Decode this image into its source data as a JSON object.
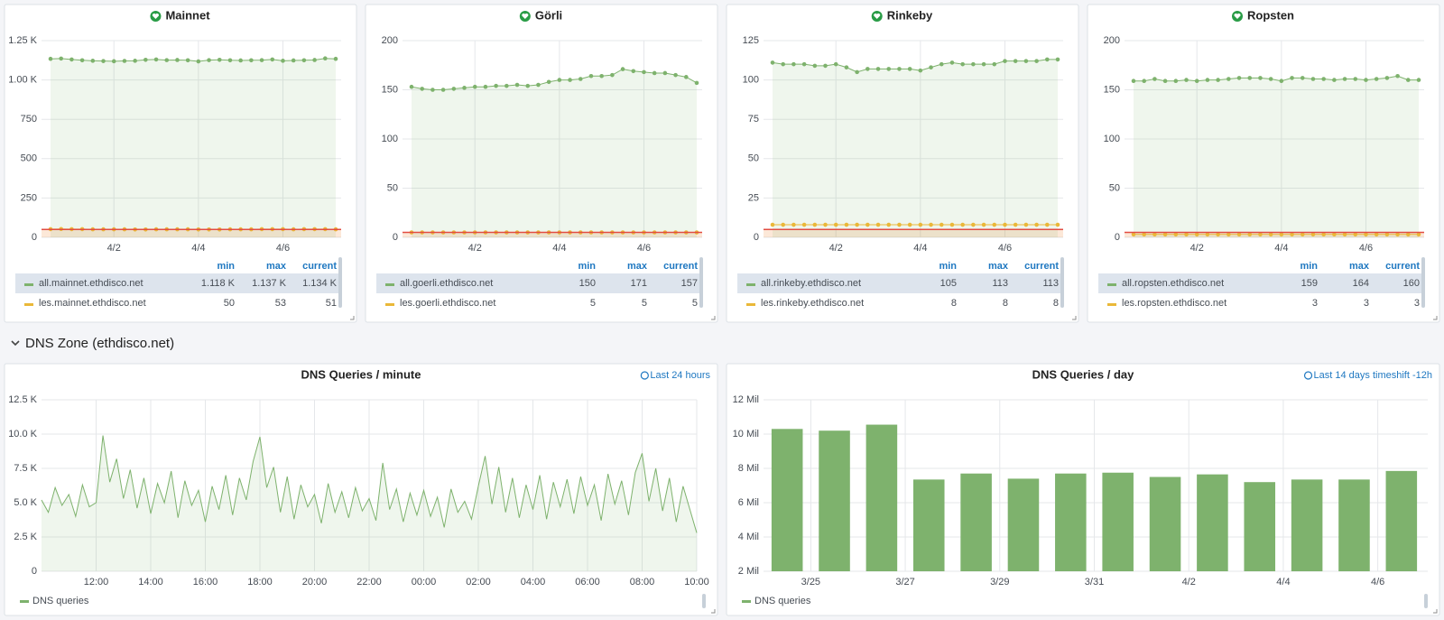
{
  "section_title": "DNS Zone (ethdisco.net)",
  "chart_data": [
    {
      "type": "line",
      "title": "Mainnet",
      "grid": true,
      "points": true,
      "threshold": 50,
      "categories": [
        null,
        null,
        null,
        null,
        null,
        null,
        "4/2",
        null,
        null,
        null,
        null,
        null,
        null,
        null,
        "4/4",
        null,
        null,
        null,
        null,
        null,
        null,
        null,
        "4/6",
        null,
        null,
        null,
        null,
        null
      ],
      "ylim": [
        0,
        1250
      ],
      "yticks": [
        0,
        250,
        500,
        750,
        {
          "value": 1000,
          "label": "1.00 K"
        },
        {
          "value": 1250,
          "label": "1.25 K"
        }
      ],
      "legend_columns": [
        "min",
        "max",
        "current"
      ],
      "series": [
        {
          "name": "all.mainnet.ethdisco.net",
          "color": "#7eb26d",
          "fill": true,
          "values": [
            1134,
            1136,
            1130,
            1125,
            1122,
            1120,
            1119,
            1121,
            1122,
            1128,
            1130,
            1126,
            1127,
            1125,
            1118,
            1126,
            1128,
            1125,
            1124,
            1125,
            1126,
            1130,
            1122,
            1124,
            1125,
            1127,
            1137,
            1134
          ],
          "stats": [
            1118,
            1137,
            1134
          ],
          "stats_labels": [
            "1.118 K",
            "1.137 K",
            "1.134 K"
          ]
        },
        {
          "name": "les.mainnet.ethdisco.net",
          "color": "#eab839",
          "values": [
            52,
            53,
            52,
            52,
            51,
            51,
            51,
            51,
            50,
            50,
            51,
            51,
            51,
            51,
            50,
            50,
            50,
            51,
            51,
            51,
            52,
            52,
            52,
            51,
            52,
            52,
            52,
            51
          ],
          "stats": [
            50,
            53,
            51
          ]
        }
      ]
    },
    {
      "type": "line",
      "title": "Görli",
      "grid": true,
      "points": true,
      "threshold": 5,
      "categories": [
        null,
        null,
        null,
        null,
        null,
        null,
        "4/2",
        null,
        null,
        null,
        null,
        null,
        null,
        null,
        "4/4",
        null,
        null,
        null,
        null,
        null,
        null,
        null,
        "4/6",
        null,
        null,
        null,
        null,
        null
      ],
      "ylim": [
        0,
        200
      ],
      "yticks": [
        0,
        50,
        100,
        150,
        200
      ],
      "legend_columns": [
        "min",
        "max",
        "current"
      ],
      "series": [
        {
          "name": "all.goerli.ethdisco.net",
          "color": "#7eb26d",
          "fill": true,
          "values": [
            153,
            151,
            150,
            150,
            151,
            152,
            153,
            153,
            154,
            154,
            155,
            154,
            155,
            158,
            160,
            160,
            161,
            164,
            164,
            165,
            171,
            169,
            168,
            167,
            167,
            165,
            163,
            157
          ],
          "stats": [
            150,
            171,
            157
          ]
        },
        {
          "name": "les.goerli.ethdisco.net",
          "color": "#eab839",
          "values": [
            5,
            5,
            5,
            5,
            5,
            5,
            5,
            5,
            5,
            5,
            5,
            5,
            5,
            5,
            5,
            5,
            5,
            5,
            5,
            5,
            5,
            5,
            5,
            5,
            5,
            5,
            5,
            5
          ],
          "stats": [
            5,
            5,
            5
          ]
        }
      ]
    },
    {
      "type": "line",
      "title": "Rinkeby",
      "grid": true,
      "points": true,
      "threshold": 5,
      "categories": [
        null,
        null,
        null,
        null,
        null,
        null,
        "4/2",
        null,
        null,
        null,
        null,
        null,
        null,
        null,
        "4/4",
        null,
        null,
        null,
        null,
        null,
        null,
        null,
        "4/6",
        null,
        null,
        null,
        null,
        null
      ],
      "ylim": [
        0,
        125
      ],
      "yticks": [
        0,
        25,
        50,
        75,
        100,
        125
      ],
      "legend_columns": [
        "min",
        "max",
        "current"
      ],
      "series": [
        {
          "name": "all.rinkeby.ethdisco.net",
          "color": "#7eb26d",
          "fill": true,
          "values": [
            111,
            110,
            110,
            110,
            109,
            109,
            110,
            108,
            105,
            107,
            107,
            107,
            107,
            107,
            106,
            108,
            110,
            111,
            110,
            110,
            110,
            110,
            112,
            112,
            112,
            112,
            113,
            113
          ],
          "stats": [
            105,
            113,
            113
          ]
        },
        {
          "name": "les.rinkeby.ethdisco.net",
          "color": "#eab839",
          "values": [
            8,
            8,
            8,
            8,
            8,
            8,
            8,
            8,
            8,
            8,
            8,
            8,
            8,
            8,
            8,
            8,
            8,
            8,
            8,
            8,
            8,
            8,
            8,
            8,
            8,
            8,
            8,
            8
          ],
          "stats": [
            8,
            8,
            8
          ]
        }
      ]
    },
    {
      "type": "line",
      "title": "Ropsten",
      "grid": true,
      "points": true,
      "threshold": 5,
      "categories": [
        null,
        null,
        null,
        null,
        null,
        null,
        "4/2",
        null,
        null,
        null,
        null,
        null,
        null,
        null,
        "4/4",
        null,
        null,
        null,
        null,
        null,
        null,
        null,
        "4/6",
        null,
        null,
        null,
        null,
        null
      ],
      "ylim": [
        0,
        200
      ],
      "yticks": [
        0,
        50,
        100,
        150,
        200
      ],
      "legend_columns": [
        "min",
        "max",
        "current"
      ],
      "series": [
        {
          "name": "all.ropsten.ethdisco.net",
          "color": "#7eb26d",
          "fill": true,
          "values": [
            159,
            159,
            161,
            159,
            159,
            160,
            159,
            160,
            160,
            161,
            162,
            162,
            162,
            161,
            159,
            162,
            162,
            161,
            161,
            160,
            161,
            161,
            160,
            161,
            162,
            164,
            160,
            160
          ],
          "stats": [
            159,
            164,
            160
          ]
        },
        {
          "name": "les.ropsten.ethdisco.net",
          "color": "#eab839",
          "values": [
            3,
            3,
            3,
            3,
            3,
            3,
            3,
            3,
            3,
            3,
            3,
            3,
            3,
            3,
            3,
            3,
            3,
            3,
            3,
            3,
            3,
            3,
            3,
            3,
            3,
            3,
            3,
            3
          ],
          "stats": [
            3,
            3,
            3
          ]
        }
      ]
    },
    {
      "type": "line",
      "title": "DNS Queries / minute",
      "time_range": "Last 24 hours",
      "grid": true,
      "categories": [
        null,
        null,
        null,
        null,
        null,
        null,
        null,
        null,
        "12:00",
        null,
        null,
        null,
        null,
        null,
        null,
        null,
        "14:00",
        null,
        null,
        null,
        null,
        null,
        null,
        null,
        "16:00",
        null,
        null,
        null,
        null,
        null,
        null,
        null,
        "18:00",
        null,
        null,
        null,
        null,
        null,
        null,
        null,
        "20:00",
        null,
        null,
        null,
        null,
        null,
        null,
        null,
        "22:00",
        null,
        null,
        null,
        null,
        null,
        null,
        null,
        "00:00",
        null,
        null,
        null,
        null,
        null,
        null,
        null,
        "02:00",
        null,
        null,
        null,
        null,
        null,
        null,
        null,
        "04:00",
        null,
        null,
        null,
        null,
        null,
        null,
        null,
        "06:00",
        null,
        null,
        null,
        null,
        null,
        null,
        null,
        "08:00",
        null,
        null,
        null,
        null,
        null,
        null,
        null,
        "10:00"
      ],
      "ylim": [
        0,
        12500
      ],
      "yticks": [
        0,
        {
          "value": 2500,
          "label": "2.5 K"
        },
        {
          "value": 5000,
          "label": "5.0 K"
        },
        {
          "value": 7500,
          "label": "7.5 K"
        },
        {
          "value": 10000,
          "label": "10.0 K"
        },
        {
          "value": 12500,
          "label": "12.5 K"
        }
      ],
      "series": [
        {
          "name": "DNS queries",
          "color": "#7eb26d",
          "fill": true,
          "values": [
            5200,
            4300,
            6100,
            4800,
            5600,
            4000,
            6300,
            4700,
            5000,
            9900,
            6500,
            8200,
            5300,
            7400,
            4600,
            6800,
            4200,
            6400,
            5000,
            7300,
            3900,
            6600,
            4800,
            5900,
            3600,
            6200,
            4500,
            7000,
            4100,
            6800,
            5200,
            8000,
            9800,
            6100,
            7600,
            4300,
            6900,
            3800,
            6300,
            4700,
            5600,
            3500,
            6400,
            4300,
            5800,
            3900,
            6100,
            4400,
            5300,
            3700,
            7900,
            4500,
            6000,
            3600,
            5700,
            4100,
            5900,
            4000,
            5400,
            3200,
            6000,
            4300,
            5100,
            3800,
            6200,
            8400,
            4900,
            7600,
            4300,
            6800,
            3900,
            6300,
            4500,
            7000,
            3800,
            6500,
            4700,
            6700,
            4200,
            6900,
            4800,
            6300,
            3700,
            7100,
            4900,
            6600,
            4100,
            7200,
            8600,
            5100,
            7500,
            4400,
            6800,
            3600,
            6200,
            4500,
            2800
          ]
        }
      ]
    },
    {
      "type": "bar",
      "title": "DNS Queries / day",
      "time_range": "Last 14 days timeshift -12h",
      "grid": true,
      "categories": [
        "3/25",
        null,
        "3/27",
        null,
        "3/29",
        null,
        "3/31",
        null,
        "4/2",
        null,
        "4/4",
        null,
        "4/6",
        null
      ],
      "ylim": [
        2000000,
        12000000
      ],
      "yticks": [
        {
          "value": 2000000,
          "label": "2 Mil"
        },
        {
          "value": 4000000,
          "label": "4 Mil"
        },
        {
          "value": 6000000,
          "label": "6 Mil"
        },
        {
          "value": 8000000,
          "label": "8 Mil"
        },
        {
          "value": 10000000,
          "label": "10 Mil"
        },
        {
          "value": 12000000,
          "label": "12 Mil"
        }
      ],
      "series": [
        {
          "name": "DNS queries",
          "color": "#7eb26d",
          "values": [
            10300000,
            10200000,
            10550000,
            7350000,
            7700000,
            7400000,
            7700000,
            7750000,
            7500000,
            7650000,
            7200000,
            7350000,
            7350000,
            7850000
          ]
        }
      ]
    }
  ]
}
